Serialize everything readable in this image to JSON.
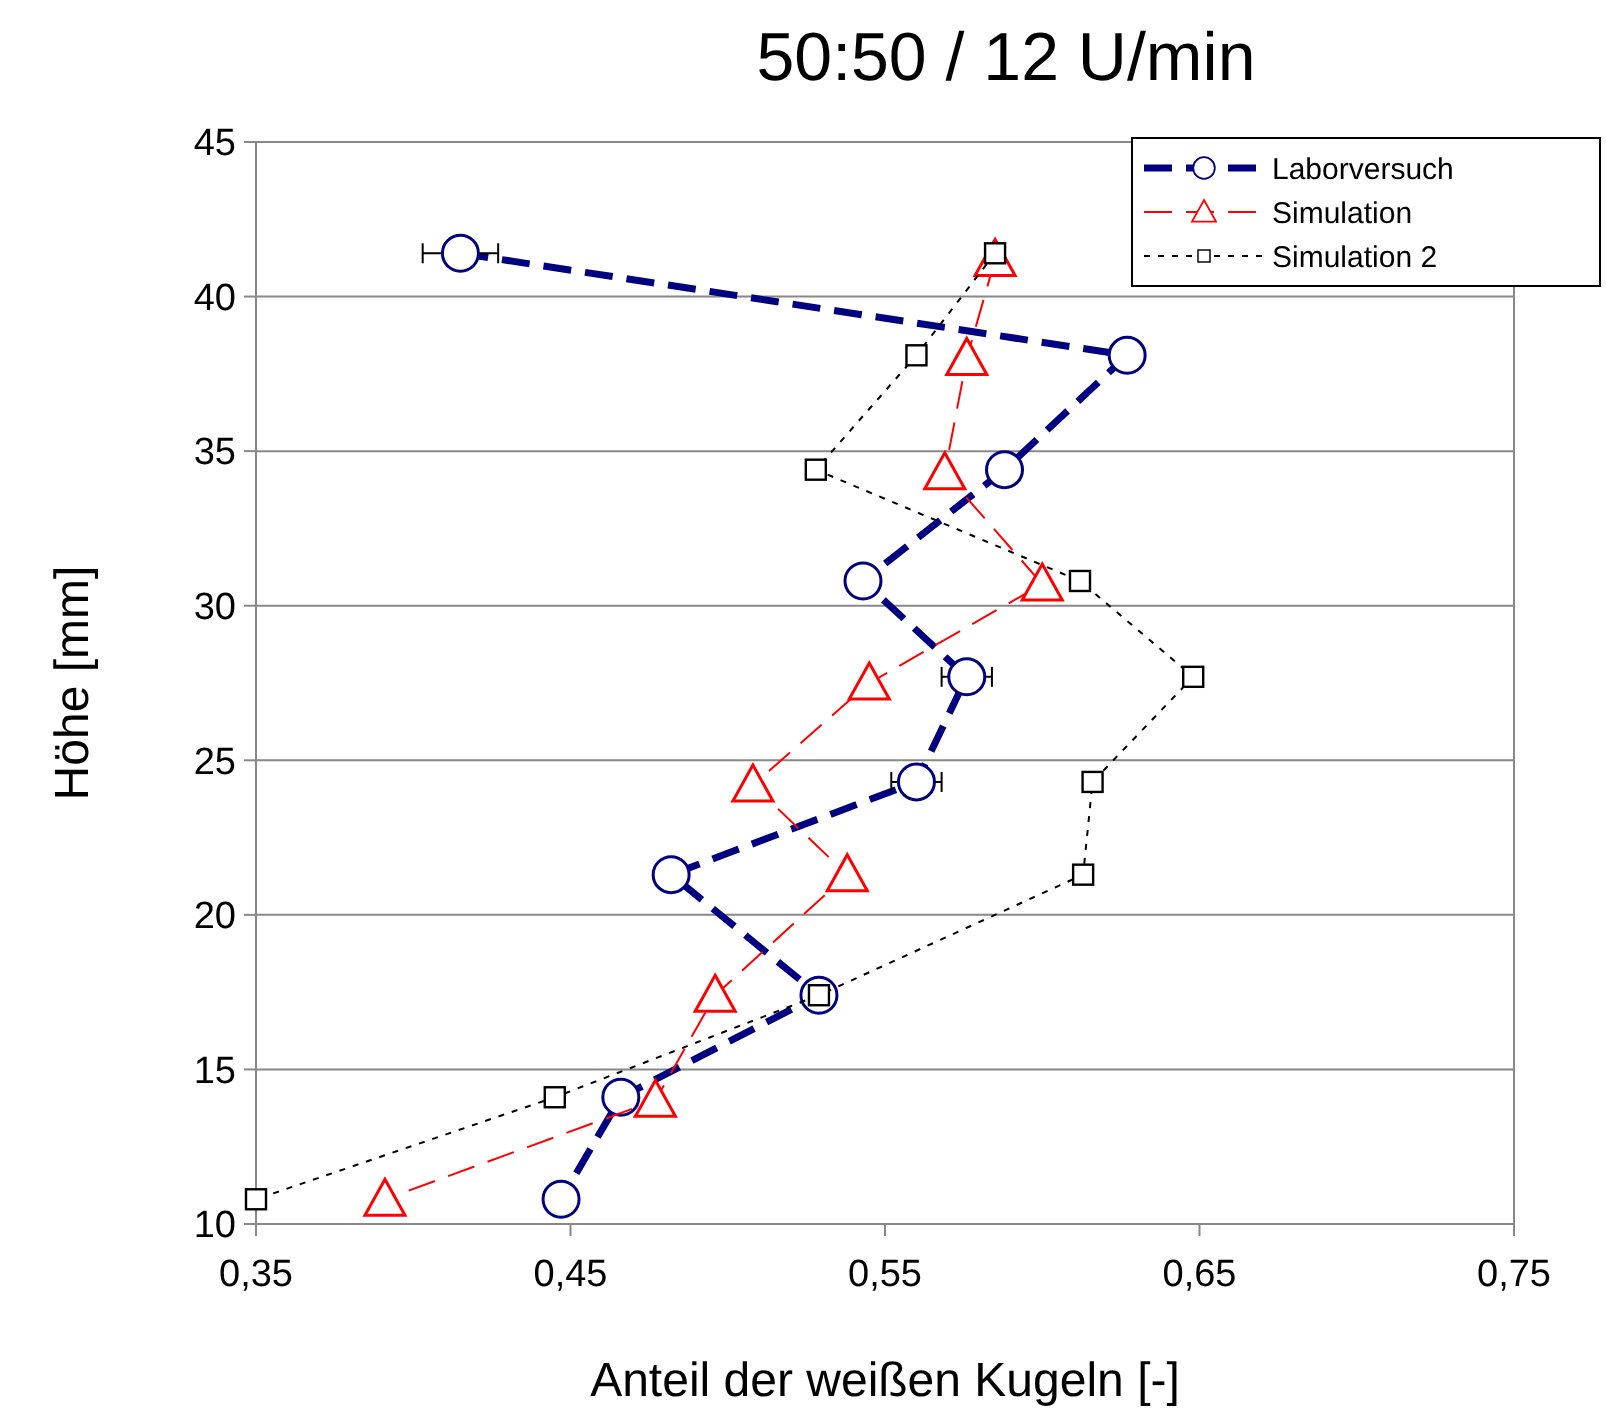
{
  "chart_data": {
    "type": "line",
    "title": "50:50 / 12 U/min",
    "xlabel": "Anteil der weißen Kugeln [-]",
    "ylabel": "Höhe [mm]",
    "xlim": [
      0.35,
      0.75
    ],
    "xticks": [
      {
        "value": 0.35,
        "label": "0,35"
      },
      {
        "value": 0.45,
        "label": "0,45"
      },
      {
        "value": 0.55,
        "label": "0,55"
      },
      {
        "value": 0.65,
        "label": "0,65"
      },
      {
        "value": 0.75,
        "label": "0,75"
      }
    ],
    "ylim": [
      10,
      45
    ],
    "yticks": [
      10,
      15,
      20,
      25,
      30,
      35,
      40,
      45
    ],
    "grid": "y",
    "legend": "top right",
    "series": [
      {
        "name": "Laborversuch",
        "color": "#000080",
        "marker": "circle",
        "line_style": "dashed",
        "x": [
          0.415,
          0.627,
          0.588,
          0.543,
          0.576,
          0.56,
          0.482,
          0.529,
          0.466,
          0.447
        ],
        "values": [
          41.4,
          38.1,
          34.4,
          30.8,
          27.7,
          24.3,
          21.3,
          17.4,
          14.1,
          10.8
        ],
        "xerrors": [
          0.012,
          null,
          null,
          null,
          0.008,
          0.008,
          null,
          null,
          null,
          null
        ]
      },
      {
        "name": "Simulation",
        "color": "#ff0000",
        "marker": "triangle",
        "line_style": "dashed",
        "x": [
          0.585,
          0.576,
          0.569,
          0.6,
          0.545,
          0.508,
          0.538,
          0.496,
          0.477,
          0.391
        ],
        "values": [
          41.2,
          38.0,
          34.3,
          30.7,
          27.5,
          24.2,
          21.3,
          17.4,
          14.0,
          10.8
        ]
      },
      {
        "name": "Simulation 2",
        "color": "#000000",
        "marker": "square",
        "line_style": "dotted",
        "x": [
          0.585,
          0.56,
          0.528,
          0.612,
          0.648,
          0.616,
          0.613,
          0.529,
          0.445,
          0.35
        ],
        "values": [
          41.4,
          38.1,
          34.4,
          30.8,
          27.7,
          24.3,
          21.3,
          17.4,
          14.1,
          10.8
        ]
      }
    ]
  }
}
